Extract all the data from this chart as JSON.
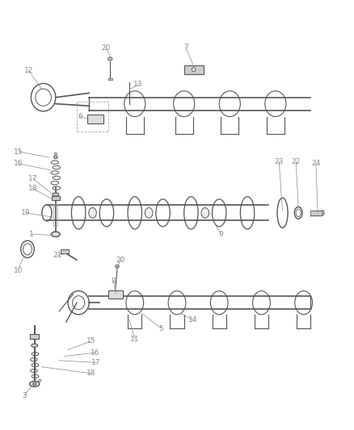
{
  "bg_color": "#ffffff",
  "line_color": "#555555",
  "label_color": "#888888",
  "figsize": [
    4.38,
    5.33
  ],
  "dpi": 100
}
